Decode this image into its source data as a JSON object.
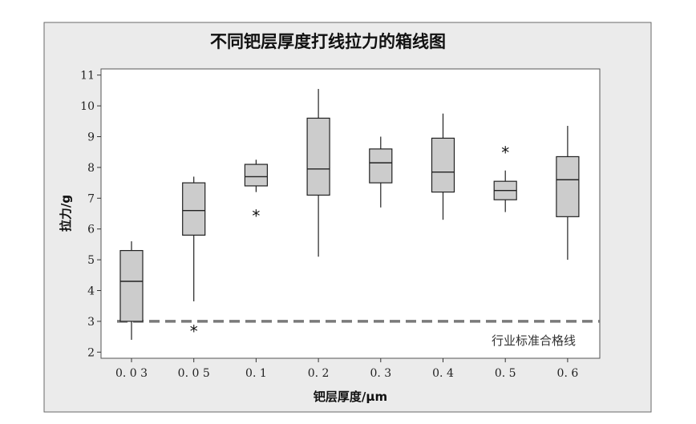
{
  "chart_data": {
    "type": "boxplot",
    "title": "不同钯层厚度打线拉力的箱线图",
    "xlabel": "钯层厚度/μm",
    "ylabel": "拉力/g",
    "ylim": [
      1.8,
      11.2
    ],
    "yticks": [
      2,
      3,
      4,
      5,
      6,
      7,
      8,
      9,
      10,
      11
    ],
    "categories": [
      "0.03",
      "0.05",
      "0.1",
      "0.2",
      "0.3",
      "0.4",
      "0.5",
      "0.6"
    ],
    "boxes": [
      {
        "category": "0.03",
        "whisker_low": 2.4,
        "q1": 3.0,
        "median": 4.3,
        "q3": 5.3,
        "whisker_high": 5.6,
        "outliers": []
      },
      {
        "category": "0.05",
        "whisker_low": 3.65,
        "q1": 5.8,
        "median": 6.6,
        "q3": 7.5,
        "whisker_high": 7.7,
        "outliers": [
          2.7
        ]
      },
      {
        "category": "0.1",
        "whisker_low": 7.2,
        "q1": 7.4,
        "median": 7.7,
        "q3": 8.1,
        "whisker_high": 8.25,
        "outliers": [
          6.45
        ]
      },
      {
        "category": "0.2",
        "whisker_low": 5.1,
        "q1": 7.1,
        "median": 7.95,
        "q3": 9.6,
        "whisker_high": 10.55,
        "outliers": []
      },
      {
        "category": "0.3",
        "whisker_low": 6.7,
        "q1": 7.5,
        "median": 8.15,
        "q3": 8.6,
        "whisker_high": 9.0,
        "outliers": []
      },
      {
        "category": "0.4",
        "whisker_low": 6.3,
        "q1": 7.2,
        "median": 7.85,
        "q3": 8.95,
        "whisker_high": 9.75,
        "outliers": []
      },
      {
        "category": "0.5",
        "whisker_low": 6.55,
        "q1": 6.95,
        "median": 7.25,
        "q3": 7.55,
        "whisker_high": 7.9,
        "outliers": [
          8.5
        ]
      },
      {
        "category": "0.6",
        "whisker_low": 5.0,
        "q1": 6.4,
        "median": 7.6,
        "q3": 8.35,
        "whisker_high": 9.35,
        "outliers": []
      }
    ],
    "reference_line": {
      "y": 3,
      "style": "dashed",
      "label": "行业标准合格线"
    },
    "grid": false,
    "colors": {
      "box_fill": "#cccccc",
      "outer_background": "#ebebeb",
      "plot_background": "#ffffff",
      "reference_line": "#7a7a7a"
    }
  }
}
